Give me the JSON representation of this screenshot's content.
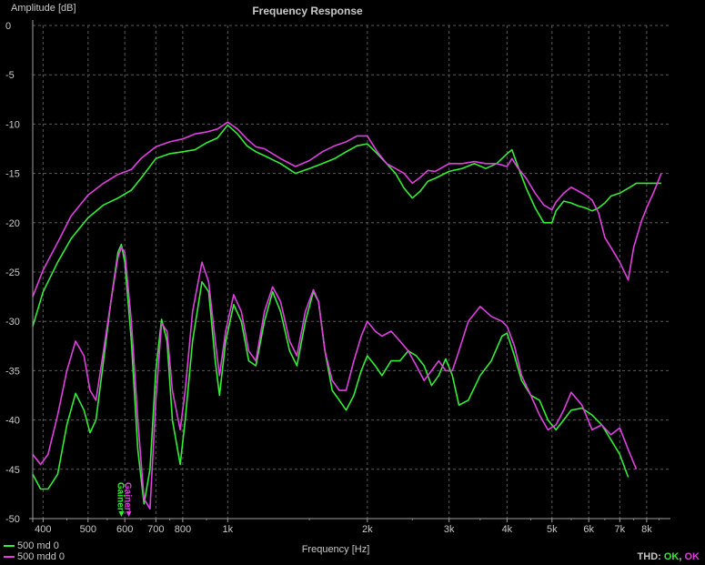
{
  "chart_data": {
    "type": "line",
    "title": "Frequency Response",
    "xlabel": "Frequency [Hz]",
    "ylabel": "Amplitude [dB]",
    "xscale": "log",
    "xlim": [
      380,
      9000
    ],
    "ylim": [
      -50,
      0
    ],
    "grid": true,
    "x_ticks": [
      {
        "v": 400,
        "label": "400"
      },
      {
        "v": 500,
        "label": "500"
      },
      {
        "v": 600,
        "label": "600"
      },
      {
        "v": 700,
        "label": "700"
      },
      {
        "v": 800,
        "label": "800"
      },
      {
        "v": 1000,
        "label": "1k"
      },
      {
        "v": 2000,
        "label": "2k"
      },
      {
        "v": 3000,
        "label": "3k"
      },
      {
        "v": 4000,
        "label": "4k"
      },
      {
        "v": 5000,
        "label": "5k"
      },
      {
        "v": 6000,
        "label": "6k"
      },
      {
        "v": 7000,
        "label": "7k"
      },
      {
        "v": 8000,
        "label": "8k"
      }
    ],
    "y_ticks": [
      0,
      -5,
      -10,
      -15,
      -20,
      -25,
      -30,
      -35,
      -40,
      -45,
      -50
    ],
    "legend_position": "bottom-left",
    "series": [
      {
        "name": "500 md 0",
        "color": "#33ee33",
        "points": [
          [
            380,
            -30.5
          ],
          [
            400,
            -27
          ],
          [
            430,
            -24
          ],
          [
            460,
            -21.6
          ],
          [
            500,
            -19.5
          ],
          [
            540,
            -18.2
          ],
          [
            580,
            -17.5
          ],
          [
            620,
            -16.7
          ],
          [
            650,
            -15.5
          ],
          [
            700,
            -13.5
          ],
          [
            750,
            -13
          ],
          [
            800,
            -12.8
          ],
          [
            850,
            -12.6
          ],
          [
            900,
            -11.9
          ],
          [
            950,
            -11.4
          ],
          [
            1000,
            -10.1
          ],
          [
            1050,
            -11
          ],
          [
            1100,
            -12.2
          ],
          [
            1150,
            -12.8
          ],
          [
            1200,
            -13.2
          ],
          [
            1300,
            -14
          ],
          [
            1400,
            -15
          ],
          [
            1500,
            -14.5
          ],
          [
            1600,
            -14
          ],
          [
            1700,
            -13.5
          ],
          [
            1800,
            -12.8
          ],
          [
            1900,
            -12.2
          ],
          [
            2000,
            -12
          ],
          [
            2100,
            -13
          ],
          [
            2200,
            -14
          ],
          [
            2300,
            -15
          ],
          [
            2400,
            -16.5
          ],
          [
            2500,
            -17.5
          ],
          [
            2600,
            -16.8
          ],
          [
            2700,
            -15.8
          ],
          [
            2800,
            -15.5
          ],
          [
            3000,
            -14.8
          ],
          [
            3200,
            -14.5
          ],
          [
            3400,
            -14
          ],
          [
            3600,
            -14.5
          ],
          [
            3800,
            -14
          ],
          [
            4000,
            -13
          ],
          [
            4100,
            -12.6
          ],
          [
            4200,
            -14
          ],
          [
            4400,
            -16.5
          ],
          [
            4600,
            -18.5
          ],
          [
            4800,
            -20
          ],
          [
            5000,
            -20
          ],
          [
            5100,
            -18.8
          ],
          [
            5300,
            -17.8
          ],
          [
            5500,
            -18
          ],
          [
            5700,
            -18.3
          ],
          [
            5900,
            -18.5
          ],
          [
            6100,
            -18.8
          ],
          [
            6300,
            -18.5
          ],
          [
            6500,
            -18
          ],
          [
            6700,
            -17.3
          ],
          [
            7000,
            -17
          ],
          [
            7300,
            -16.5
          ],
          [
            7600,
            -16
          ],
          [
            8000,
            -16
          ],
          [
            8300,
            -16
          ],
          [
            8600,
            -16
          ]
        ]
      },
      {
        "name": "500 mdd 0",
        "color": "#e040e0",
        "points": [
          [
            380,
            -27.5
          ],
          [
            400,
            -24.8
          ],
          [
            430,
            -22
          ],
          [
            460,
            -19.3
          ],
          [
            500,
            -17.2
          ],
          [
            540,
            -16
          ],
          [
            580,
            -15.1
          ],
          [
            620,
            -14.6
          ],
          [
            650,
            -13.5
          ],
          [
            700,
            -12.3
          ],
          [
            750,
            -11.8
          ],
          [
            800,
            -11.5
          ],
          [
            850,
            -11
          ],
          [
            900,
            -10.8
          ],
          [
            950,
            -10.5
          ],
          [
            1000,
            -9.8
          ],
          [
            1050,
            -10.5
          ],
          [
            1100,
            -11.5
          ],
          [
            1150,
            -12.3
          ],
          [
            1200,
            -12.5
          ],
          [
            1300,
            -13.5
          ],
          [
            1400,
            -14.3
          ],
          [
            1500,
            -13.7
          ],
          [
            1600,
            -12.8
          ],
          [
            1700,
            -12.2
          ],
          [
            1800,
            -11.8
          ],
          [
            1900,
            -11.2
          ],
          [
            2000,
            -11.2
          ],
          [
            2100,
            -12.8
          ],
          [
            2200,
            -14
          ],
          [
            2300,
            -14.5
          ],
          [
            2400,
            -15
          ],
          [
            2500,
            -16
          ],
          [
            2600,
            -15.4
          ],
          [
            2700,
            -14.7
          ],
          [
            2800,
            -14.8
          ],
          [
            3000,
            -14
          ],
          [
            3200,
            -14
          ],
          [
            3400,
            -13.8
          ],
          [
            3600,
            -14
          ],
          [
            3800,
            -14
          ],
          [
            4000,
            -14.3
          ],
          [
            4100,
            -13.5
          ],
          [
            4200,
            -14.3
          ],
          [
            4400,
            -15.5
          ],
          [
            4600,
            -17
          ],
          [
            4800,
            -18.2
          ],
          [
            5000,
            -18.7
          ],
          [
            5100,
            -17.9
          ],
          [
            5300,
            -17
          ],
          [
            5500,
            -16.4
          ],
          [
            5700,
            -16.8
          ],
          [
            5900,
            -17.2
          ],
          [
            6100,
            -17.7
          ],
          [
            6300,
            -19
          ],
          [
            6500,
            -21.5
          ],
          [
            6700,
            -22.5
          ],
          [
            7000,
            -24
          ],
          [
            7300,
            -25.8
          ],
          [
            7500,
            -22.5
          ],
          [
            7800,
            -19.8
          ],
          [
            8000,
            -18.5
          ],
          [
            8300,
            -16.8
          ],
          [
            8600,
            -15
          ]
        ]
      },
      {
        "name": "500 md 0 harmonic",
        "color": "#33ee33",
        "points": [
          [
            380,
            -45.5
          ],
          [
            395,
            -47
          ],
          [
            410,
            -47
          ],
          [
            430,
            -45.5
          ],
          [
            450,
            -40.5
          ],
          [
            470,
            -37.3
          ],
          [
            490,
            -39
          ],
          [
            505,
            -41.3
          ],
          [
            520,
            -40
          ],
          [
            540,
            -34
          ],
          [
            560,
            -28
          ],
          [
            580,
            -23
          ],
          [
            590,
            -22.2
          ],
          [
            600,
            -24
          ],
          [
            620,
            -32
          ],
          [
            640,
            -43
          ],
          [
            660,
            -48.5
          ],
          [
            680,
            -45
          ],
          [
            700,
            -35
          ],
          [
            720,
            -29.8
          ],
          [
            740,
            -32
          ],
          [
            760,
            -40
          ],
          [
            790,
            -44.5
          ],
          [
            810,
            -40
          ],
          [
            840,
            -32
          ],
          [
            880,
            -26
          ],
          [
            910,
            -27
          ],
          [
            940,
            -34
          ],
          [
            960,
            -37.5
          ],
          [
            990,
            -32
          ],
          [
            1030,
            -28.3
          ],
          [
            1070,
            -30
          ],
          [
            1110,
            -34
          ],
          [
            1150,
            -34.5
          ],
          [
            1200,
            -30
          ],
          [
            1250,
            -27
          ],
          [
            1300,
            -29
          ],
          [
            1360,
            -33
          ],
          [
            1410,
            -34.5
          ],
          [
            1470,
            -30
          ],
          [
            1530,
            -27
          ],
          [
            1570,
            -28
          ],
          [
            1620,
            -33
          ],
          [
            1680,
            -37
          ],
          [
            1740,
            -38
          ],
          [
            1800,
            -39
          ],
          [
            1870,
            -37.5
          ],
          [
            1940,
            -35
          ],
          [
            2000,
            -33.5
          ],
          [
            2080,
            -34.5
          ],
          [
            2150,
            -35.5
          ],
          [
            2250,
            -34
          ],
          [
            2350,
            -34
          ],
          [
            2450,
            -33
          ],
          [
            2550,
            -33.5
          ],
          [
            2650,
            -34.5
          ],
          [
            2750,
            -36.5
          ],
          [
            2850,
            -35.5
          ],
          [
            2950,
            -33.8
          ],
          [
            3050,
            -35.5
          ],
          [
            3150,
            -38.5
          ],
          [
            3300,
            -38
          ],
          [
            3500,
            -35.5
          ],
          [
            3700,
            -34
          ],
          [
            3900,
            -31.5
          ],
          [
            4000,
            -31.2
          ],
          [
            4150,
            -33.5
          ],
          [
            4300,
            -36
          ],
          [
            4500,
            -37.5
          ],
          [
            4700,
            -38
          ],
          [
            4900,
            -40
          ],
          [
            5100,
            -41
          ],
          [
            5300,
            -40
          ],
          [
            5500,
            -39
          ],
          [
            5800,
            -38.8
          ],
          [
            6100,
            -39.5
          ],
          [
            6400,
            -40.5
          ],
          [
            6700,
            -42
          ],
          [
            7000,
            -43.5
          ],
          [
            7300,
            -45.8
          ]
        ]
      },
      {
        "name": "500 mdd 0 harmonic",
        "color": "#e040e0",
        "points": [
          [
            380,
            -43.5
          ],
          [
            395,
            -44.5
          ],
          [
            410,
            -43.5
          ],
          [
            430,
            -39.5
          ],
          [
            450,
            -35
          ],
          [
            470,
            -32
          ],
          [
            490,
            -33.5
          ],
          [
            505,
            -37
          ],
          [
            520,
            -38
          ],
          [
            540,
            -33
          ],
          [
            560,
            -28
          ],
          [
            580,
            -23.5
          ],
          [
            590,
            -22.5
          ],
          [
            600,
            -23
          ],
          [
            620,
            -30
          ],
          [
            640,
            -40
          ],
          [
            660,
            -48
          ],
          [
            680,
            -49
          ],
          [
            700,
            -38
          ],
          [
            720,
            -30.2
          ],
          [
            740,
            -31
          ],
          [
            760,
            -37
          ],
          [
            790,
            -41
          ],
          [
            810,
            -37
          ],
          [
            840,
            -29
          ],
          [
            880,
            -24
          ],
          [
            910,
            -26
          ],
          [
            940,
            -32
          ],
          [
            960,
            -35.5
          ],
          [
            990,
            -31
          ],
          [
            1030,
            -27.3
          ],
          [
            1070,
            -29
          ],
          [
            1110,
            -33
          ],
          [
            1150,
            -34
          ],
          [
            1200,
            -29
          ],
          [
            1250,
            -26.5
          ],
          [
            1300,
            -28
          ],
          [
            1360,
            -32
          ],
          [
            1410,
            -33.5
          ],
          [
            1470,
            -29
          ],
          [
            1530,
            -26.8
          ],
          [
            1570,
            -28
          ],
          [
            1620,
            -33
          ],
          [
            1680,
            -36
          ],
          [
            1740,
            -37
          ],
          [
            1800,
            -37
          ],
          [
            1870,
            -34
          ],
          [
            1940,
            -31.5
          ],
          [
            2000,
            -30
          ],
          [
            2080,
            -31
          ],
          [
            2150,
            -31.5
          ],
          [
            2250,
            -31
          ],
          [
            2350,
            -32
          ],
          [
            2450,
            -33
          ],
          [
            2550,
            -34.5
          ],
          [
            2650,
            -36
          ],
          [
            2750,
            -35
          ],
          [
            2850,
            -34
          ],
          [
            2950,
            -35
          ],
          [
            3050,
            -35
          ],
          [
            3150,
            -33
          ],
          [
            3300,
            -30
          ],
          [
            3500,
            -28.5
          ],
          [
            3700,
            -29.5
          ],
          [
            3900,
            -30
          ],
          [
            4000,
            -30.5
          ],
          [
            4150,
            -32.5
          ],
          [
            4300,
            -35.5
          ],
          [
            4500,
            -37.5
          ],
          [
            4700,
            -39.5
          ],
          [
            4900,
            -41
          ],
          [
            5100,
            -40.5
          ],
          [
            5300,
            -39
          ],
          [
            5500,
            -37.2
          ],
          [
            5800,
            -38.5
          ],
          [
            6100,
            -41
          ],
          [
            6400,
            -40.5
          ],
          [
            6700,
            -41.5
          ],
          [
            7000,
            -40.8
          ],
          [
            7300,
            -43
          ],
          [
            7600,
            -45
          ]
        ]
      }
    ],
    "annotations": [
      {
        "text": "Gainer",
        "color": "#33ee33",
        "x": 590,
        "y": -50
      },
      {
        "text": "Gainer",
        "color": "#e040e0",
        "x": 612,
        "y": -50
      }
    ],
    "legend": [
      {
        "label": "500 md 0",
        "color": "#33ee33"
      },
      {
        "label": "500 mdd 0",
        "color": "#e040e0"
      }
    ]
  },
  "footer": {
    "thd_label": "THD:",
    "ok1": "OK",
    "ok2": "OK"
  }
}
